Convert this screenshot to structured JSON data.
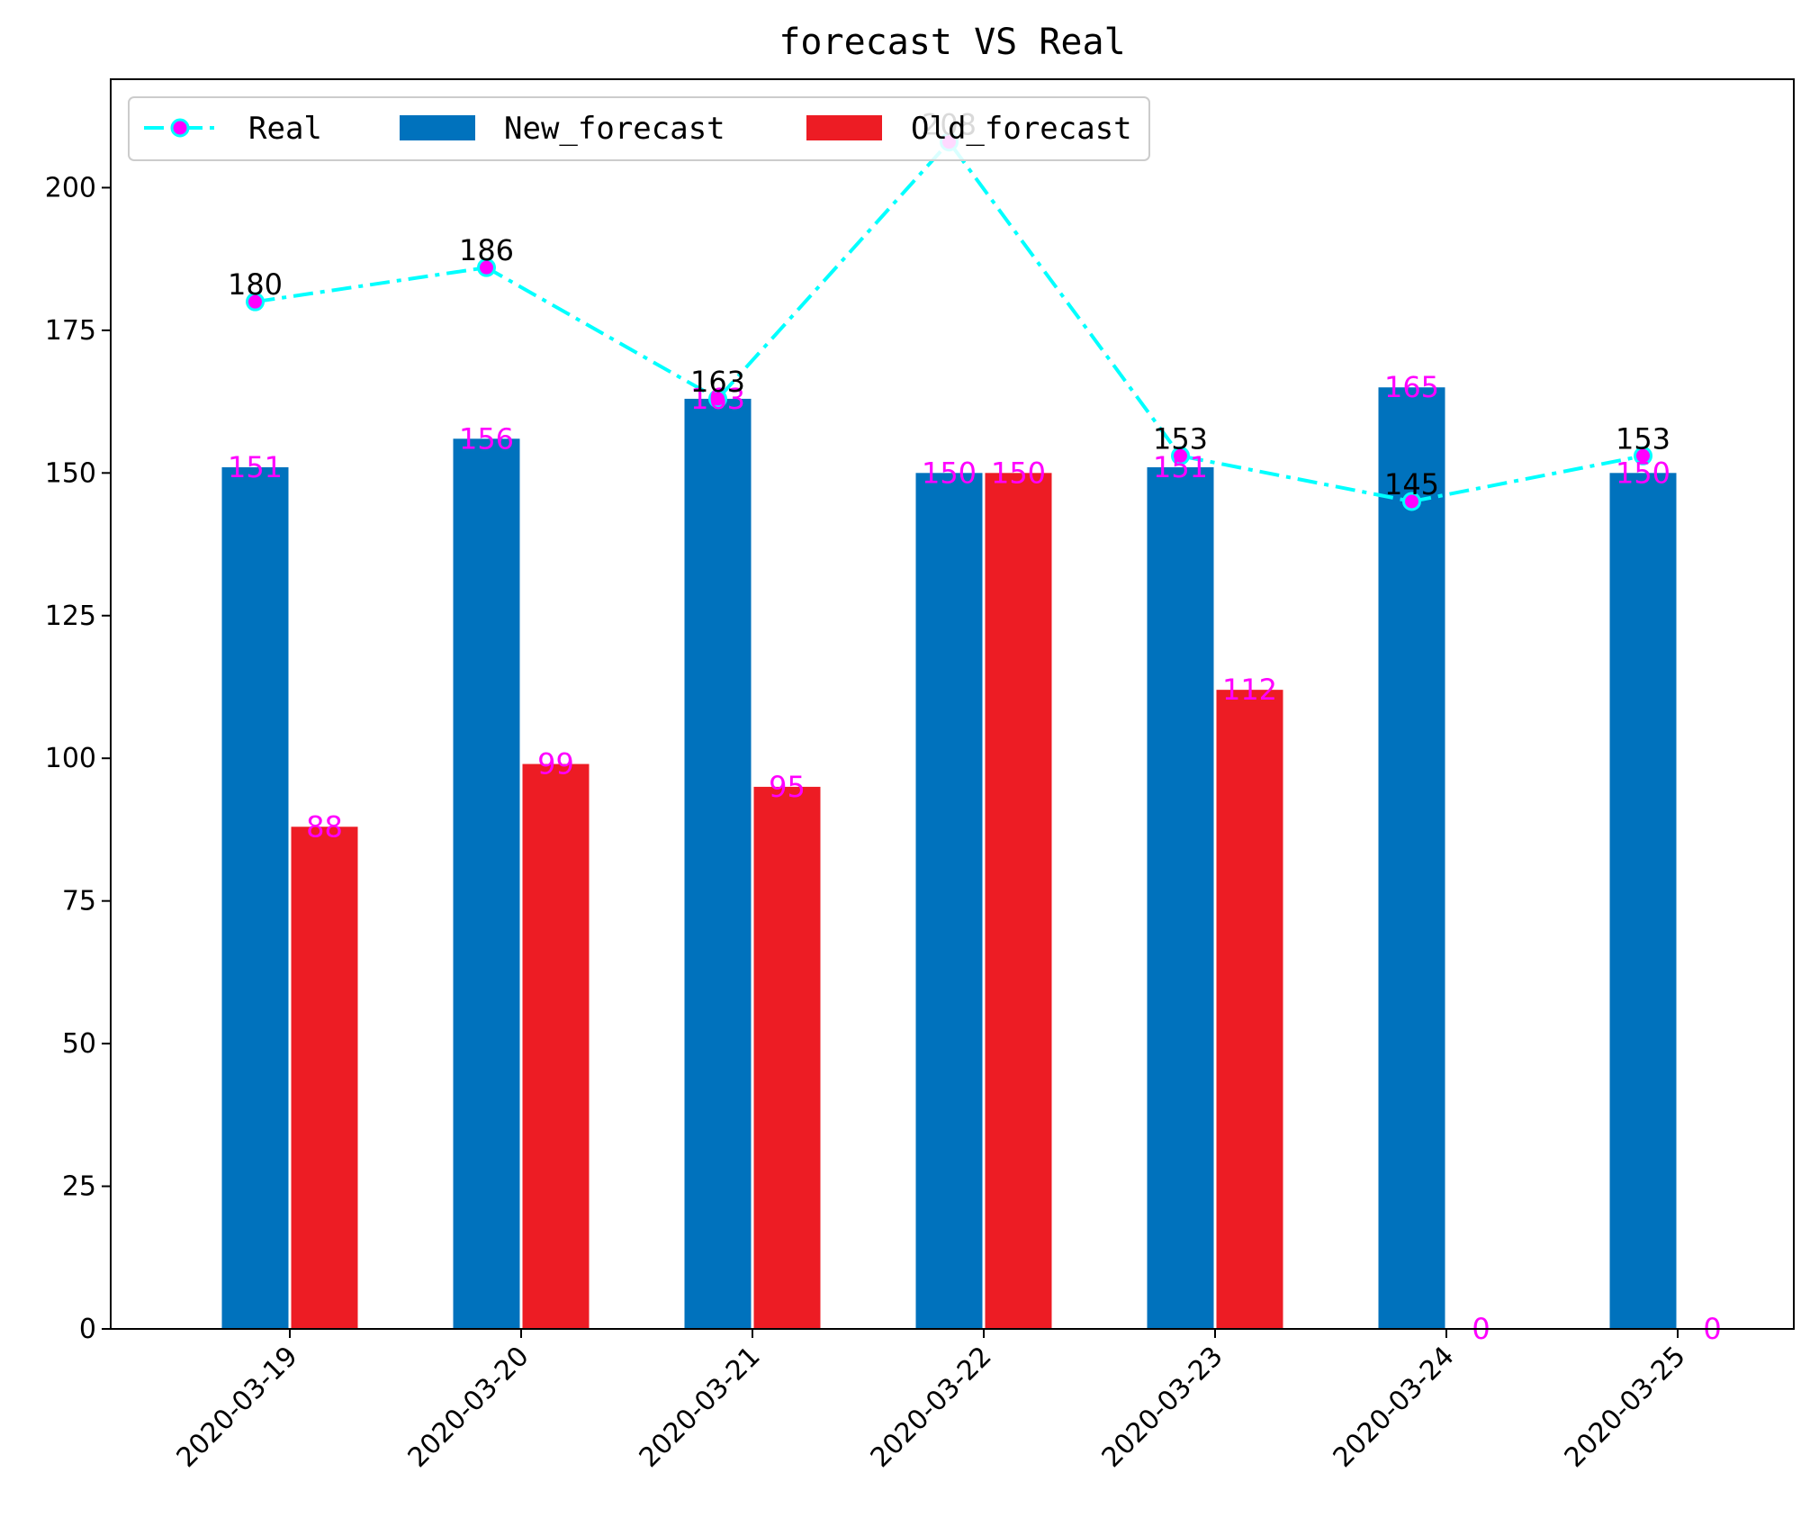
{
  "chart_data": {
    "type": "bar",
    "title": "forecast VS Real",
    "xlabel": "",
    "ylabel": "",
    "ylim": [
      0,
      219
    ],
    "yticks": [
      0,
      25,
      50,
      75,
      100,
      125,
      150,
      175,
      200
    ],
    "categories": [
      "2020-03-19",
      "2020-03-20",
      "2020-03-21",
      "2020-03-22",
      "2020-03-23",
      "2020-03-24",
      "2020-03-25"
    ],
    "series": [
      {
        "name": "Real",
        "kind": "line",
        "color": "#00ffff",
        "marker_color": "#ff00ff",
        "label_color": "#000000",
        "values": [
          180,
          186,
          163,
          208,
          153,
          145,
          153
        ]
      },
      {
        "name": "New_forecast",
        "kind": "bar",
        "color": "#0072bd",
        "label_color": "#ff00ff",
        "values": [
          151,
          156,
          163,
          150,
          151,
          165,
          150
        ]
      },
      {
        "name": "Old_forecast",
        "kind": "bar",
        "color": "#ed1c24",
        "label_color": "#ff00ff",
        "values": [
          88,
          99,
          95,
          150,
          112,
          0,
          0
        ]
      }
    ],
    "legend": {
      "placement": "top-left",
      "columns": 3
    },
    "grid": false
  }
}
